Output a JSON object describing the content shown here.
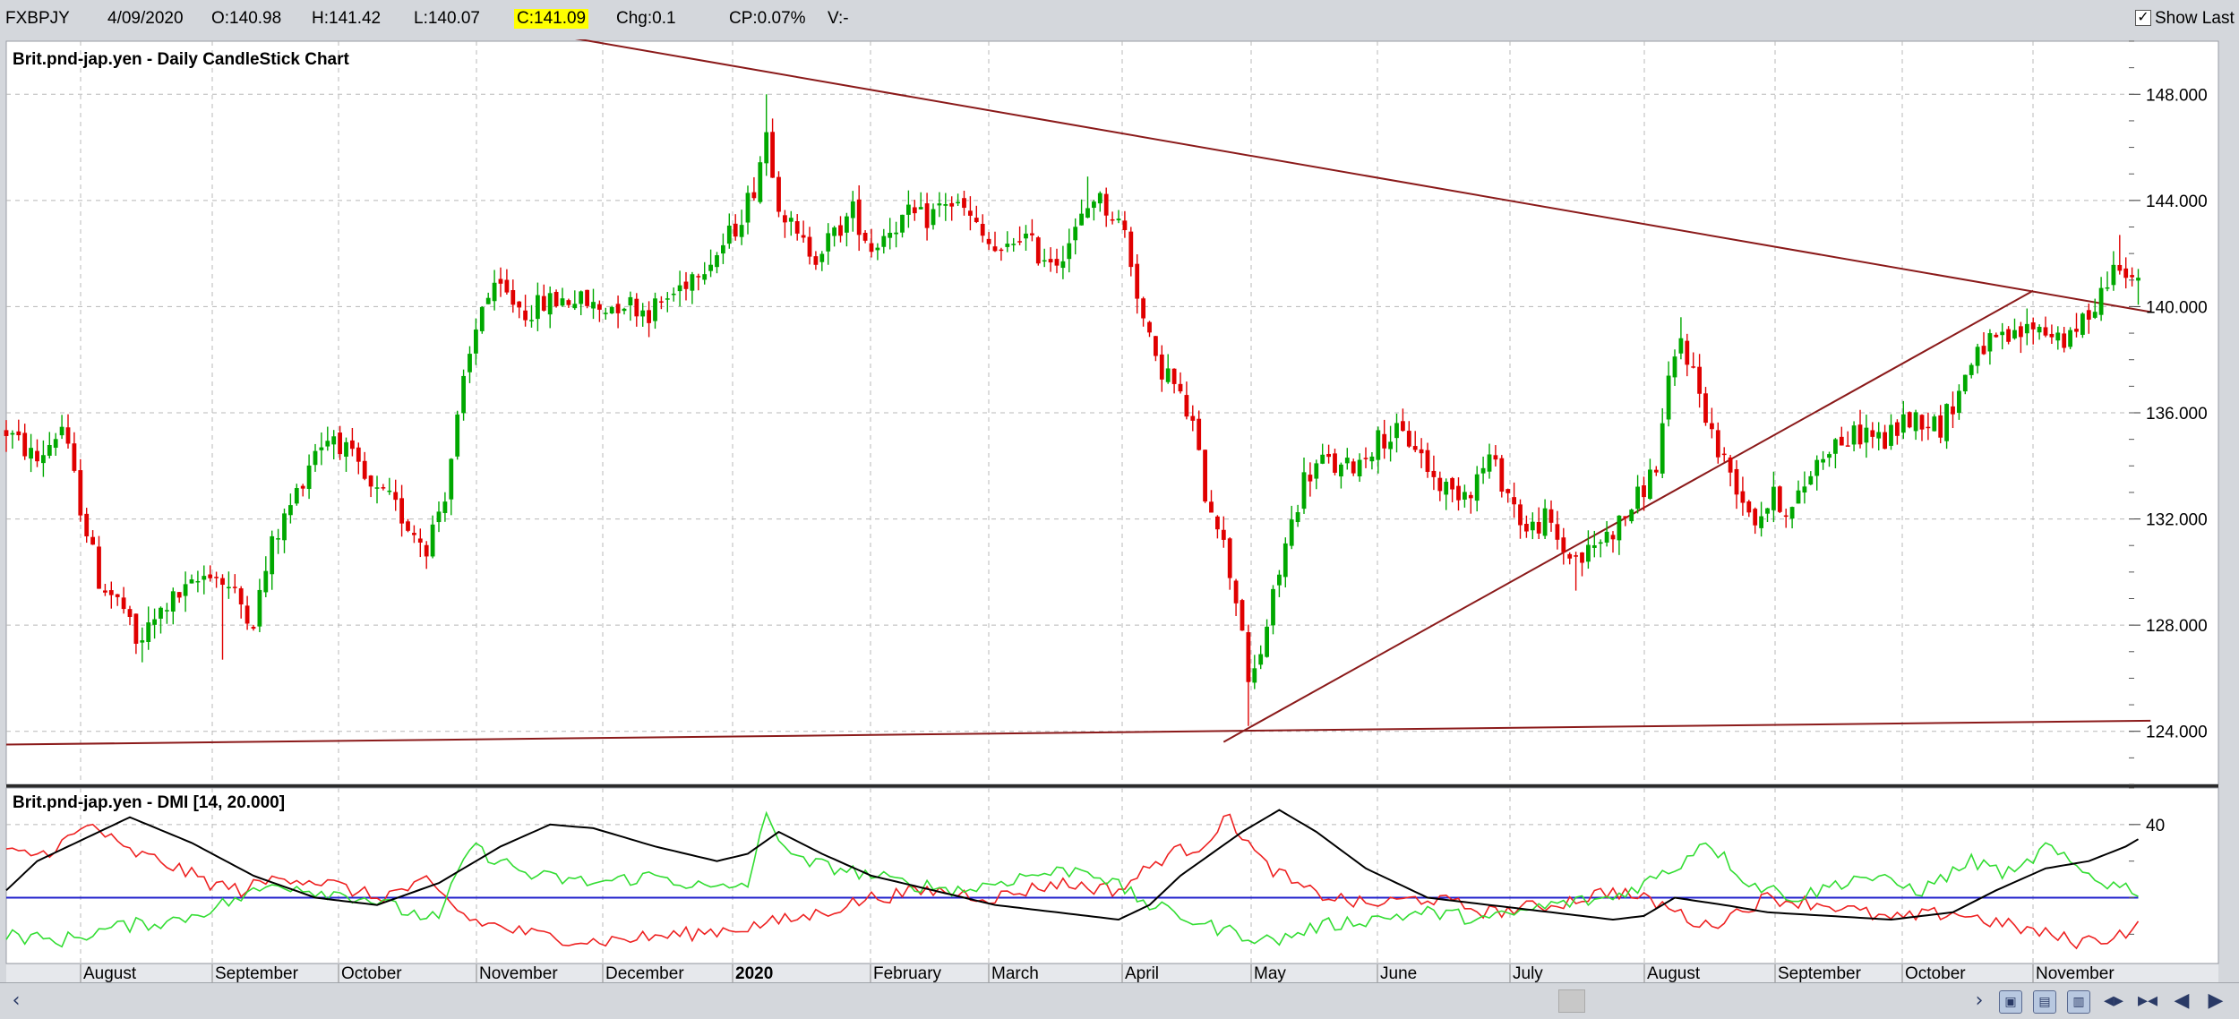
{
  "header": {
    "symbol": "FXBPJY",
    "date": "4/09/2020",
    "open": "O:140.98",
    "high": "H:141.42",
    "low": "L:140.07",
    "close": "C:141.09",
    "change": "Chg:0.1",
    "change_pct": "CP:0.07%",
    "volume": "V:-",
    "show_last_label": "Show Last",
    "show_last_checked": true
  },
  "colors": {
    "up": "#00a800",
    "down": "#e00000",
    "trendline": "#8b1a1a",
    "plus_di": "#33dd33",
    "minus_di": "#ee2222",
    "adx": "#000000",
    "threshold": "#2222cc",
    "highlight": "#ffff00"
  },
  "chart_data": [
    {
      "type": "candlestick",
      "title": "Brit.pnd-jap.yen - Daily CandleStick Chart",
      "ylim": [
        122,
        150
      ],
      "yticks": [
        "148.000",
        "144.000",
        "140.000",
        "136.000",
        "132.000",
        "128.000",
        "124.000"
      ],
      "x_month_labels": [
        "August",
        "September",
        "October",
        "November",
        "December",
        "2020",
        "February",
        "March",
        "April",
        "May",
        "June",
        "July",
        "August",
        "September",
        "October",
        "November"
      ],
      "grid": true,
      "anchors": [
        {
          "d": 0,
          "v": 135.3
        },
        {
          "d": 5,
          "v": 134.2
        },
        {
          "d": 9,
          "v": 135.5
        },
        {
          "d": 12,
          "v": 132.5
        },
        {
          "d": 15,
          "v": 129.7
        },
        {
          "d": 19,
          "v": 128.6
        },
        {
          "d": 21,
          "v": 127.2
        },
        {
          "d": 26,
          "v": 128.8
        },
        {
          "d": 30,
          "v": 129.4
        },
        {
          "d": 33,
          "v": 130.1
        },
        {
          "d": 36,
          "v": 129.4
        },
        {
          "d": 40,
          "v": 128.2
        },
        {
          "d": 43,
          "v": 131.0
        },
        {
          "d": 47,
          "v": 133.0
        },
        {
          "d": 50,
          "v": 134.7
        },
        {
          "d": 53,
          "v": 135.2
        },
        {
          "d": 56,
          "v": 134.2
        },
        {
          "d": 59,
          "v": 133.0
        },
        {
          "d": 62,
          "v": 132.7
        },
        {
          "d": 65,
          "v": 131.8
        },
        {
          "d": 68,
          "v": 131.0
        },
        {
          "d": 71,
          "v": 133.0
        },
        {
          "d": 74,
          "v": 137.0
        },
        {
          "d": 77,
          "v": 140.2
        },
        {
          "d": 80,
          "v": 140.6
        },
        {
          "d": 84,
          "v": 139.8
        },
        {
          "d": 88,
          "v": 140.2
        },
        {
          "d": 92,
          "v": 140.3
        },
        {
          "d": 96,
          "v": 139.9
        },
        {
          "d": 100,
          "v": 140.2
        },
        {
          "d": 104,
          "v": 139.8
        },
        {
          "d": 108,
          "v": 140.5
        },
        {
          "d": 112,
          "v": 141.5
        },
        {
          "d": 115,
          "v": 142.0
        },
        {
          "d": 118,
          "v": 143.0
        },
        {
          "d": 121,
          "v": 144.5
        },
        {
          "d": 123,
          "v": 146.6
        },
        {
          "d": 125,
          "v": 144.0
        },
        {
          "d": 128,
          "v": 142.5
        },
        {
          "d": 131,
          "v": 142.0
        },
        {
          "d": 134,
          "v": 142.7
        },
        {
          "d": 137,
          "v": 143.6
        },
        {
          "d": 140,
          "v": 142.2
        },
        {
          "d": 143,
          "v": 143.0
        },
        {
          "d": 146,
          "v": 143.4
        },
        {
          "d": 149,
          "v": 143.3
        },
        {
          "d": 152,
          "v": 144.0
        },
        {
          "d": 155,
          "v": 143.6
        },
        {
          "d": 158,
          "v": 142.6
        },
        {
          "d": 161,
          "v": 141.8
        },
        {
          "d": 164,
          "v": 142.8
        },
        {
          "d": 167,
          "v": 142.0
        },
        {
          "d": 170,
          "v": 141.8
        },
        {
          "d": 173,
          "v": 142.8
        },
        {
          "d": 176,
          "v": 144.2
        },
        {
          "d": 179,
          "v": 143.5
        },
        {
          "d": 181,
          "v": 142.8
        },
        {
          "d": 184,
          "v": 139.5
        },
        {
          "d": 186,
          "v": 137.8
        },
        {
          "d": 188,
          "v": 137.5
        },
        {
          "d": 190,
          "v": 136.5
        },
        {
          "d": 192,
          "v": 135.5
        },
        {
          "d": 194,
          "v": 133.0
        },
        {
          "d": 196,
          "v": 132.0
        },
        {
          "d": 198,
          "v": 130.0
        },
        {
          "d": 200,
          "v": 128.0
        },
        {
          "d": 201,
          "v": 125.5
        },
        {
          "d": 203,
          "v": 127.0
        },
        {
          "d": 205,
          "v": 129.0
        },
        {
          "d": 207,
          "v": 131.0
        },
        {
          "d": 210,
          "v": 133.5
        },
        {
          "d": 213,
          "v": 134.2
        },
        {
          "d": 216,
          "v": 133.8
        },
        {
          "d": 219,
          "v": 134.2
        },
        {
          "d": 222,
          "v": 135.0
        },
        {
          "d": 225,
          "v": 135.2
        },
        {
          "d": 228,
          "v": 134.8
        },
        {
          "d": 231,
          "v": 133.5
        },
        {
          "d": 234,
          "v": 133.0
        },
        {
          "d": 237,
          "v": 133.2
        },
        {
          "d": 240,
          "v": 134.3
        },
        {
          "d": 243,
          "v": 133.0
        },
        {
          "d": 246,
          "v": 131.5
        },
        {
          "d": 249,
          "v": 132.0
        },
        {
          "d": 252,
          "v": 130.8
        },
        {
          "d": 255,
          "v": 130.5
        },
        {
          "d": 258,
          "v": 131.2
        },
        {
          "d": 261,
          "v": 131.8
        },
        {
          "d": 264,
          "v": 132.8
        },
        {
          "d": 267,
          "v": 134.0
        },
        {
          "d": 269,
          "v": 137.0
        },
        {
          "d": 271,
          "v": 138.8
        },
        {
          "d": 273,
          "v": 137.5
        },
        {
          "d": 275,
          "v": 136.0
        },
        {
          "d": 277,
          "v": 134.5
        },
        {
          "d": 279,
          "v": 133.8
        },
        {
          "d": 281,
          "v": 132.8
        },
        {
          "d": 283,
          "v": 132.0
        },
        {
          "d": 286,
          "v": 132.8
        },
        {
          "d": 289,
          "v": 132.3
        },
        {
          "d": 292,
          "v": 133.8
        },
        {
          "d": 295,
          "v": 134.8
        },
        {
          "d": 298,
          "v": 135.0
        },
        {
          "d": 301,
          "v": 135.3
        },
        {
          "d": 304,
          "v": 134.9
        },
        {
          "d": 307,
          "v": 135.7
        },
        {
          "d": 310,
          "v": 135.8
        },
        {
          "d": 313,
          "v": 135.5
        },
        {
          "d": 316,
          "v": 136.8
        },
        {
          "d": 319,
          "v": 138.5
        },
        {
          "d": 322,
          "v": 138.6
        },
        {
          "d": 325,
          "v": 138.8
        },
        {
          "d": 328,
          "v": 139.3
        },
        {
          "d": 331,
          "v": 139.0
        },
        {
          "d": 334,
          "v": 138.7
        },
        {
          "d": 337,
          "v": 139.8
        },
        {
          "d": 340,
          "v": 141.0
        },
        {
          "d": 342,
          "v": 141.8
        },
        {
          "d": 344,
          "v": 141.2
        },
        {
          "d": 345,
          "v": 141.09
        }
      ],
      "last_candle": {
        "open": 140.98,
        "high": 141.42,
        "low": 140.07,
        "close": 141.09
      },
      "spike_highs": [
        {
          "d": 123,
          "v": 148.0
        },
        {
          "d": 271,
          "v": 139.6
        },
        {
          "d": 175,
          "v": 144.9
        },
        {
          "d": 342,
          "v": 142.7
        }
      ],
      "spike_lows": [
        {
          "d": 22,
          "v": 126.6
        },
        {
          "d": 35,
          "v": 126.7
        },
        {
          "d": 68,
          "v": 130.5
        },
        {
          "d": 201,
          "v": 124.2
        },
        {
          "d": 254,
          "v": 129.3
        },
        {
          "d": 283,
          "v": 131.7
        }
      ],
      "trendlines": [
        {
          "from": {
            "d": 50,
            "v": 151.8
          },
          "to": {
            "d": 347,
            "v": 139.8
          }
        },
        {
          "from": {
            "d": 197,
            "v": 123.6
          },
          "to": {
            "d": 328,
            "v": 140.6
          }
        },
        {
          "from": {
            "d": 0,
            "v": 123.5
          },
          "to": {
            "d": 347,
            "v": 124.4
          }
        }
      ]
    },
    {
      "type": "line",
      "title": "Brit.pnd-jap.yen - DMI [14, 20.000]",
      "ylim": [
        2,
        50
      ],
      "yticks": [
        "40"
      ],
      "threshold": 20,
      "series": [
        {
          "key": "minus_di",
          "anchors": [
            [
              0,
              32
            ],
            [
              6,
              32
            ],
            [
              14,
              40
            ],
            [
              19,
              33
            ],
            [
              25,
              30
            ],
            [
              33,
              24
            ],
            [
              38,
              22
            ],
            [
              45,
              26
            ],
            [
              52,
              24
            ],
            [
              60,
              20
            ],
            [
              68,
              24
            ],
            [
              75,
              14
            ],
            [
              85,
              10
            ],
            [
              95,
              8
            ],
            [
              110,
              10
            ],
            [
              120,
              12
            ],
            [
              130,
              15
            ],
            [
              140,
              20
            ],
            [
              150,
              22
            ],
            [
              160,
              20
            ],
            [
              170,
              24
            ],
            [
              180,
              22
            ],
            [
              188,
              32
            ],
            [
              193,
              34
            ],
            [
              198,
              42
            ],
            [
              203,
              30
            ],
            [
              210,
              22
            ],
            [
              220,
              18
            ],
            [
              230,
              20
            ],
            [
              240,
              16
            ],
            [
              250,
              18
            ],
            [
              260,
              22
            ],
            [
              268,
              18
            ],
            [
              275,
              12
            ],
            [
              285,
              20
            ],
            [
              295,
              18
            ],
            [
              305,
              14
            ],
            [
              315,
              16
            ],
            [
              325,
              12
            ],
            [
              335,
              8
            ],
            [
              340,
              9
            ],
            [
              345,
              12
            ]
          ]
        },
        {
          "key": "plus_di",
          "anchors": [
            [
              0,
              10
            ],
            [
              8,
              8
            ],
            [
              18,
              12
            ],
            [
              28,
              14
            ],
            [
              38,
              20
            ],
            [
              44,
              24
            ],
            [
              50,
              22
            ],
            [
              58,
              20
            ],
            [
              65,
              16
            ],
            [
              70,
              14
            ],
            [
              75,
              34
            ],
            [
              85,
              26
            ],
            [
              95,
              24
            ],
            [
              105,
              26
            ],
            [
              115,
              22
            ],
            [
              120,
              24
            ],
            [
              123,
              42
            ],
            [
              128,
              30
            ],
            [
              135,
              28
            ],
            [
              145,
              24
            ],
            [
              155,
              22
            ],
            [
              165,
              26
            ],
            [
              175,
              28
            ],
            [
              185,
              18
            ],
            [
              195,
              12
            ],
            [
              205,
              8
            ],
            [
              212,
              12
            ],
            [
              220,
              14
            ],
            [
              230,
              16
            ],
            [
              240,
              14
            ],
            [
              250,
              18
            ],
            [
              260,
              20
            ],
            [
              270,
              28
            ],
            [
              275,
              36
            ],
            [
              282,
              24
            ],
            [
              290,
              20
            ],
            [
              300,
              26
            ],
            [
              310,
              22
            ],
            [
              318,
              30
            ],
            [
              325,
              26
            ],
            [
              330,
              34
            ],
            [
              335,
              28
            ],
            [
              340,
              24
            ],
            [
              345,
              22
            ]
          ]
        },
        {
          "key": "adx",
          "anchors": [
            [
              0,
              22
            ],
            [
              5,
              30
            ],
            [
              20,
              42
            ],
            [
              30,
              35
            ],
            [
              40,
              26
            ],
            [
              50,
              20
            ],
            [
              60,
              18
            ],
            [
              70,
              24
            ],
            [
              80,
              34
            ],
            [
              88,
              40
            ],
            [
              95,
              39
            ],
            [
              105,
              34
            ],
            [
              115,
              30
            ],
            [
              120,
              32
            ],
            [
              125,
              38
            ],
            [
              132,
              32
            ],
            [
              140,
              26
            ],
            [
              150,
              22
            ],
            [
              160,
              18
            ],
            [
              170,
              16
            ],
            [
              180,
              14
            ],
            [
              185,
              18
            ],
            [
              190,
              26
            ],
            [
              200,
              38
            ],
            [
              206,
              44
            ],
            [
              212,
              38
            ],
            [
              220,
              28
            ],
            [
              230,
              20
            ],
            [
              240,
              18
            ],
            [
              250,
              16
            ],
            [
              260,
              14
            ],
            [
              265,
              15
            ],
            [
              270,
              20
            ],
            [
              278,
              18
            ],
            [
              285,
              16
            ],
            [
              295,
              15
            ],
            [
              305,
              14
            ],
            [
              315,
              16
            ],
            [
              322,
              22
            ],
            [
              330,
              28
            ],
            [
              337,
              30
            ],
            [
              343,
              34
            ],
            [
              345,
              36
            ]
          ]
        }
      ]
    }
  ]
}
